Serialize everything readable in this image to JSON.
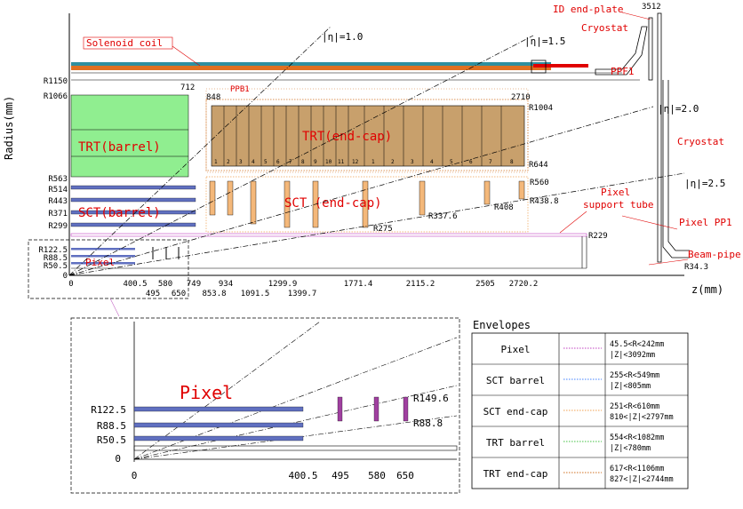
{
  "top": {
    "radius_axis_label": "Radius(mm)",
    "z_axis_label": "z(mm)",
    "eta_labels": [
      "|η|=1.0",
      "|η|=1.5",
      "|η|=2.0",
      "|η|=2.5"
    ],
    "solenoid": "Solenoid coil",
    "id_endplate": "ID end-plate",
    "cryostat_top": "Cryostat",
    "cryostat_right": "Cryostat",
    "ppf1": "PPF1",
    "ppb1": "PPB1",
    "trt_barrel": "TRT(barrel)",
    "trt_endcap": "TRT(end-cap)",
    "sct_barrel": "SCT(barrel)",
    "sct_endcap": "SCT (end-cap)",
    "pixel": "Pixel",
    "pixel_support_tube": [
      "Pixel",
      "support tube"
    ],
    "pixel_pp1": "Pixel PP1",
    "beam_pipe": "Beam-pipe",
    "r_labels_left": [
      "R1150",
      "R1066",
      "R563",
      "R514",
      "R443",
      "R371",
      "R299",
      "R122.5",
      "R88.5",
      "R50.5",
      "0"
    ],
    "r_labels_inner": [
      "R1004",
      "R644",
      "R560",
      "R438.8",
      "R408",
      "R337.6",
      "R275",
      "R229",
      "R34.3"
    ],
    "z_top_labels": [
      "3512",
      "712",
      "848",
      "2710"
    ],
    "trt_wheel_numbers_a": [
      "1",
      "2",
      "3",
      "4",
      "5",
      "6",
      "7",
      "8",
      "9",
      "10",
      "11",
      "12"
    ],
    "trt_wheel_numbers_b": [
      "1",
      "2",
      "3",
      "4",
      "5",
      "6",
      "7",
      "8"
    ],
    "z_ticks_row1": [
      "0",
      "400.5",
      "580",
      "749",
      "934",
      "1299.9",
      "1771.4",
      "2115.2",
      "2505",
      "2720.2"
    ],
    "z_ticks_row2": [
      "495",
      "650",
      "853.8",
      "1091.5",
      "1399.7"
    ]
  },
  "zoom": {
    "title": "Pixel",
    "r_labels": [
      "R122.5",
      "R88.5",
      "R50.5",
      "0"
    ],
    "z_labels": [
      "0",
      "400.5",
      "495",
      "580",
      "650"
    ],
    "right_labels": [
      "R149.6",
      "R88.8"
    ]
  },
  "envelopes": {
    "title": "Envelopes",
    "rows": [
      {
        "name": "Pixel",
        "line1": "45.5<R<242mm",
        "line2": "|Z|<3092mm",
        "color": "#c040c0"
      },
      {
        "name": "SCT barrel",
        "line1": "255<R<549mm",
        "line2": "|Z|<805mm",
        "color": "#4080ff"
      },
      {
        "name": "SCT end-cap",
        "line1": "251<R<610mm",
        "line2": "810<|Z|<2797mm",
        "color": "#f0a050"
      },
      {
        "name": "TRT barrel",
        "line1": "554<R<1082mm",
        "line2": "|Z|<780mm",
        "color": "#40c040"
      },
      {
        "name": "TRT end-cap",
        "line1": "617<R<1106mm",
        "line2": "827<|Z|<2744mm",
        "color": "#d07020"
      }
    ]
  }
}
